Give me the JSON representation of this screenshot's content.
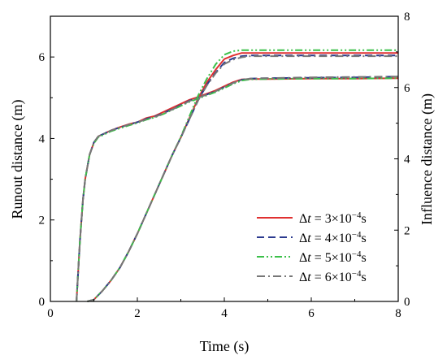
{
  "chart_data": {
    "type": "line",
    "xlabel": "Time (s)",
    "ylabel_left": "Runout distance (m)",
    "ylabel_right": "Influence distance (m)",
    "xlim": [
      0,
      8
    ],
    "ylim_left": [
      0,
      7
    ],
    "ylim_right": [
      0,
      8
    ],
    "x_ticks": [
      0,
      2,
      4,
      6,
      8
    ],
    "y_left_ticks": [
      0,
      2,
      4,
      6
    ],
    "y_right_ticks": [
      0,
      2,
      4,
      6,
      8
    ],
    "x_tick_labels": [
      "0",
      "2",
      "4",
      "6",
      "8"
    ],
    "y_left_tick_labels": [
      "0",
      "2",
      "4",
      "6"
    ],
    "y_right_tick_labels": [
      "0",
      "2",
      "4",
      "6",
      "8"
    ],
    "legend_position": "lower-right",
    "grid": false,
    "series": [
      {
        "name": "Δt = 3×10⁻⁴s",
        "legend": {
          "symbol": "Δ",
          "italic": "t",
          "rest": " = 3×10",
          "sup": "−4",
          "unit": "s"
        },
        "color": "#e03030",
        "dash": "solid",
        "runout": {
          "x": [
            0.6,
            0.68,
            0.75,
            0.8,
            0.85,
            0.9,
            1.0,
            1.1,
            1.2,
            1.4,
            1.6,
            1.8,
            2.0,
            2.2,
            2.4,
            2.6,
            2.8,
            3.0,
            3.2,
            3.4,
            3.6,
            3.8,
            4.0,
            4.2,
            4.4,
            4.6,
            5.0,
            6.0,
            7.0,
            8.0
          ],
          "y": [
            0.0,
            1.5,
            2.5,
            3.0,
            3.3,
            3.6,
            3.9,
            4.05,
            4.1,
            4.2,
            4.28,
            4.35,
            4.4,
            4.5,
            4.55,
            4.65,
            4.75,
            4.85,
            4.95,
            5.02,
            5.1,
            5.18,
            5.28,
            5.38,
            5.45,
            5.46,
            5.46,
            5.47,
            5.47,
            5.48
          ]
        },
        "influence": {
          "x": [
            0.85,
            1.0,
            1.2,
            1.4,
            1.6,
            1.8,
            2.0,
            2.2,
            2.4,
            2.6,
            2.8,
            3.0,
            3.2,
            3.4,
            3.6,
            3.8,
            4.0,
            4.2,
            4.4,
            4.6,
            5.0,
            6.0,
            7.0,
            8.0
          ],
          "y": [
            0.0,
            0.05,
            0.3,
            0.6,
            0.95,
            1.4,
            1.9,
            2.45,
            3.0,
            3.55,
            4.1,
            4.6,
            5.15,
            5.7,
            6.15,
            6.5,
            6.8,
            6.9,
            6.97,
            6.97,
            6.97,
            6.97,
            6.97,
            6.97
          ]
        }
      },
      {
        "name": "Δt = 4×10⁻⁴s",
        "legend": {
          "symbol": "Δ",
          "italic": "t",
          "rest": " = 4×10",
          "sup": "−4",
          "unit": "s"
        },
        "color": "#2b3a8f",
        "dash": "dashed",
        "runout": {
          "x": [
            0.6,
            0.68,
            0.75,
            0.8,
            0.85,
            0.9,
            1.0,
            1.1,
            1.2,
            1.4,
            1.6,
            1.8,
            2.0,
            2.2,
            2.4,
            2.6,
            2.8,
            3.0,
            3.2,
            3.4,
            3.6,
            3.8,
            4.0,
            4.2,
            4.4,
            4.6,
            5.0,
            6.0,
            7.0,
            8.0
          ],
          "y": [
            0.0,
            1.5,
            2.5,
            3.0,
            3.3,
            3.6,
            3.9,
            4.05,
            4.1,
            4.2,
            4.27,
            4.34,
            4.4,
            4.48,
            4.54,
            4.62,
            4.72,
            4.82,
            4.93,
            5.0,
            5.08,
            5.16,
            5.26,
            5.36,
            5.44,
            5.47,
            5.48,
            5.49,
            5.5,
            5.52
          ]
        },
        "influence": {
          "x": [
            0.85,
            1.0,
            1.2,
            1.4,
            1.6,
            1.8,
            2.0,
            2.2,
            2.4,
            2.6,
            2.8,
            3.0,
            3.2,
            3.4,
            3.6,
            3.8,
            4.0,
            4.2,
            4.4,
            4.6,
            5.0,
            6.0,
            7.0,
            8.0
          ],
          "y": [
            0.0,
            0.05,
            0.3,
            0.6,
            0.95,
            1.4,
            1.9,
            2.45,
            3.0,
            3.55,
            4.1,
            4.6,
            5.12,
            5.65,
            6.08,
            6.42,
            6.7,
            6.82,
            6.88,
            6.9,
            6.9,
            6.9,
            6.9,
            6.9
          ]
        }
      },
      {
        "name": "Δt = 5×10⁻⁴s",
        "legend": {
          "symbol": "Δ",
          "italic": "t",
          "rest": " = 5×10",
          "sup": "−4",
          "unit": "s"
        },
        "color": "#3cc04a",
        "dash": "dashdotdot",
        "runout": {
          "x": [
            0.6,
            0.68,
            0.75,
            0.8,
            0.85,
            0.9,
            1.0,
            1.1,
            1.2,
            1.4,
            1.6,
            1.8,
            2.0,
            2.2,
            2.4,
            2.6,
            2.8,
            3.0,
            3.2,
            3.4,
            3.6,
            3.8,
            4.0,
            4.2,
            4.4,
            4.6,
            5.0,
            6.0,
            7.0,
            8.0
          ],
          "y": [
            0.0,
            1.5,
            2.5,
            3.0,
            3.3,
            3.6,
            3.88,
            4.03,
            4.08,
            4.18,
            4.25,
            4.32,
            4.38,
            4.46,
            4.52,
            4.6,
            4.7,
            4.8,
            4.9,
            4.98,
            5.06,
            5.14,
            5.24,
            5.34,
            5.42,
            5.45,
            5.46,
            5.47,
            5.47,
            5.48
          ]
        },
        "influence": {
          "x": [
            0.85,
            1.0,
            1.2,
            1.4,
            1.6,
            1.8,
            2.0,
            2.2,
            2.4,
            2.6,
            2.8,
            3.0,
            3.2,
            3.4,
            3.6,
            3.8,
            4.0,
            4.2,
            4.4,
            4.6,
            5.0,
            6.0,
            7.0,
            8.0
          ],
          "y": [
            0.0,
            0.05,
            0.3,
            0.6,
            0.95,
            1.4,
            1.9,
            2.45,
            3.0,
            3.55,
            4.1,
            4.62,
            5.2,
            5.78,
            6.25,
            6.65,
            6.92,
            7.02,
            7.05,
            7.05,
            7.05,
            7.05,
            7.05,
            7.05
          ]
        }
      },
      {
        "name": "Δt = 6×10⁻⁴s",
        "legend": {
          "symbol": "Δ",
          "italic": "t",
          "rest": " = 6×10",
          "sup": "−4",
          "unit": "s"
        },
        "color": "#777777",
        "dash": "dashdot",
        "runout": {
          "x": [
            0.6,
            0.68,
            0.75,
            0.8,
            0.85,
            0.9,
            1.0,
            1.1,
            1.2,
            1.4,
            1.6,
            1.8,
            2.0,
            2.2,
            2.4,
            2.6,
            2.8,
            3.0,
            3.2,
            3.4,
            3.6,
            3.8,
            4.0,
            4.2,
            4.4,
            4.6,
            5.0,
            6.0,
            7.0,
            8.0
          ],
          "y": [
            0.0,
            1.5,
            2.5,
            3.0,
            3.3,
            3.6,
            3.9,
            4.05,
            4.1,
            4.2,
            4.27,
            4.34,
            4.4,
            4.47,
            4.53,
            4.61,
            4.71,
            4.81,
            4.92,
            5.0,
            5.08,
            5.16,
            5.26,
            5.36,
            5.44,
            5.47,
            5.48,
            5.5,
            5.51,
            5.52
          ]
        },
        "influence": {
          "x": [
            0.85,
            1.0,
            1.2,
            1.4,
            1.6,
            1.8,
            2.0,
            2.2,
            2.4,
            2.6,
            2.8,
            3.0,
            3.2,
            3.4,
            3.6,
            3.8,
            4.0,
            4.2,
            4.4,
            4.6,
            5.0,
            6.0,
            7.0,
            8.0
          ],
          "y": [
            0.0,
            0.05,
            0.3,
            0.6,
            0.95,
            1.4,
            1.9,
            2.45,
            3.0,
            3.55,
            4.1,
            4.6,
            5.12,
            5.64,
            6.06,
            6.4,
            6.66,
            6.78,
            6.85,
            6.88,
            6.88,
            6.88,
            6.88,
            6.88
          ]
        }
      }
    ]
  }
}
